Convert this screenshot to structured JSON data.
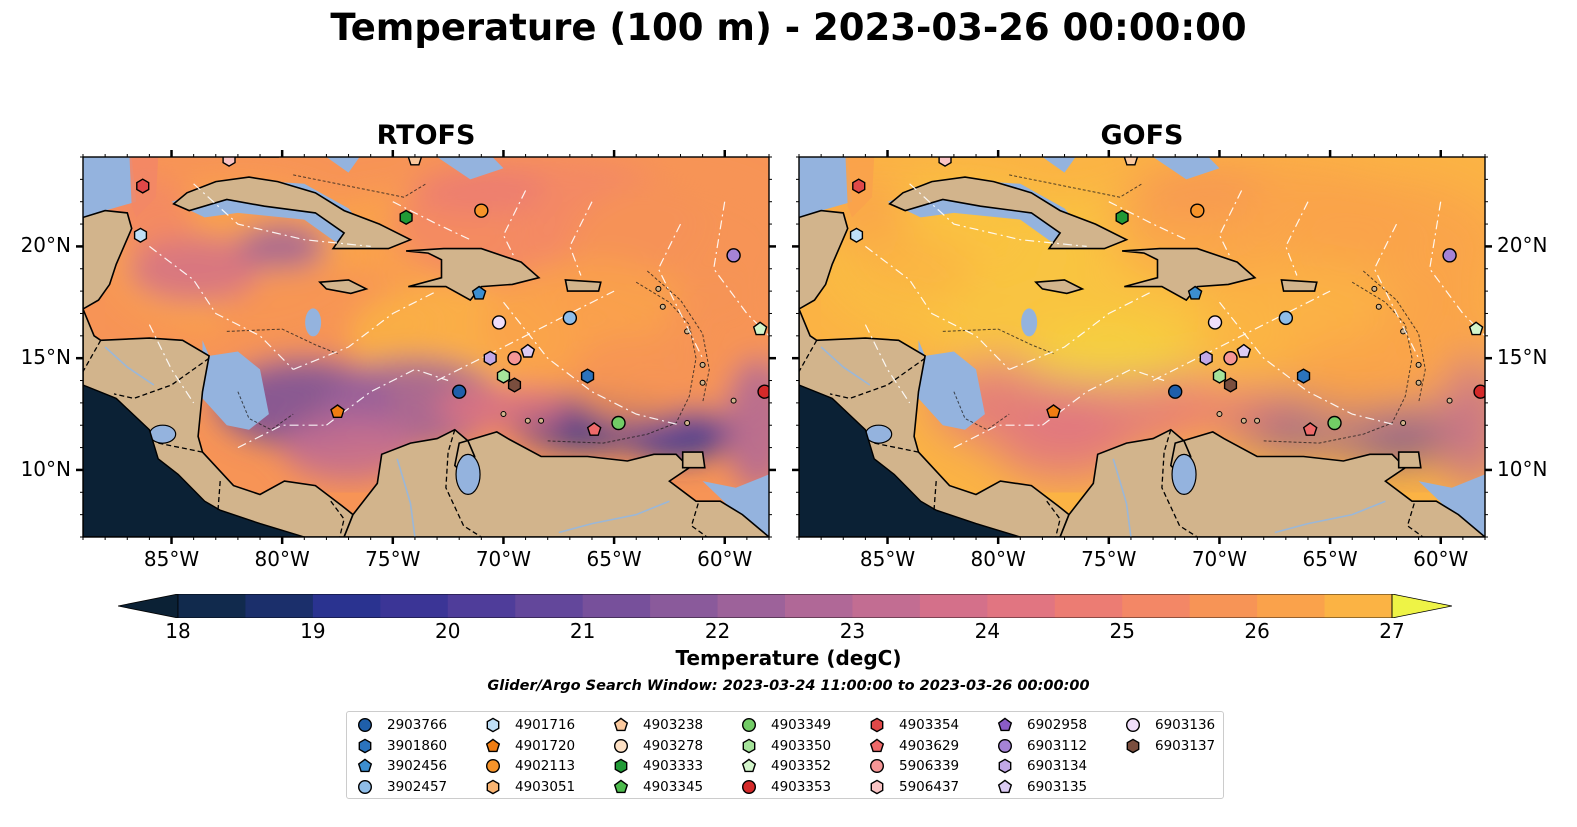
{
  "title": "Temperature (100 m) - 2023-03-26 00:00:00",
  "panels": [
    {
      "title": "RTOFS"
    },
    {
      "title": "GOFS"
    }
  ],
  "axes": {
    "x_ticks": [
      "85°W",
      "80°W",
      "75°W",
      "70°W",
      "65°W",
      "60°W"
    ],
    "x_tick_values": [
      -85,
      -80,
      -75,
      -70,
      -65,
      -60
    ],
    "y_ticks": [
      "20°N",
      "15°N",
      "10°N"
    ],
    "y_tick_values": [
      20,
      15,
      10
    ],
    "lon_range": [
      -89,
      -58
    ],
    "lat_range": [
      7,
      24
    ]
  },
  "colorbar": {
    "label": "Temperature (degC)",
    "ticks": [
      "18",
      "19",
      "20",
      "21",
      "22",
      "23",
      "24",
      "25",
      "26",
      "27"
    ],
    "range": [
      18,
      27
    ],
    "step": 0.5,
    "extend": "both"
  },
  "colors": {
    "land": "#d2b48c",
    "shallow_water": "#94b3de",
    "colormap": [
      "#0b2135",
      "#112a4d",
      "#1b2f6b",
      "#2a3390",
      "#3b3596",
      "#4f3d9a",
      "#63479b",
      "#77509b",
      "#8a5a9b",
      "#9d629a",
      "#b06897",
      "#c26d92",
      "#d4708a",
      "#e17581",
      "#ec7c73",
      "#f38766",
      "#f79456",
      "#faa24b",
      "#fbb344",
      "#f9c540",
      "#f5d93c",
      "#eef346"
    ]
  },
  "search_window": "Glider/Argo Search Window: 2023-03-24 11:00:00 to 2023-03-26 00:00:00",
  "legend": [
    {
      "id": "2903766",
      "marker": "circle",
      "color": "#1f5faa"
    },
    {
      "id": "3901860",
      "marker": "hexagon",
      "color": "#2b73bd"
    },
    {
      "id": "3902456",
      "marker": "pentagon",
      "color": "#3c8ed0"
    },
    {
      "id": "3902457",
      "marker": "circle",
      "color": "#8fbde8"
    },
    {
      "id": "4901716",
      "marker": "hexagon",
      "color": "#bfdff7"
    },
    {
      "id": "4901720",
      "marker": "pentagon",
      "color": "#f07d12"
    },
    {
      "id": "4902113",
      "marker": "circle",
      "color": "#f7942a"
    },
    {
      "id": "4903051",
      "marker": "hexagon",
      "color": "#f9b472"
    },
    {
      "id": "4903238",
      "marker": "pentagon",
      "color": "#fbc99e"
    },
    {
      "id": "4903278",
      "marker": "circle",
      "color": "#fde0c4"
    },
    {
      "id": "4903333",
      "marker": "hexagon",
      "color": "#219a36"
    },
    {
      "id": "4903345",
      "marker": "pentagon",
      "color": "#4dbb4d"
    },
    {
      "id": "4903349",
      "marker": "circle",
      "color": "#72cc66"
    },
    {
      "id": "4903350",
      "marker": "hexagon",
      "color": "#a5e39a"
    },
    {
      "id": "4903352",
      "marker": "pentagon",
      "color": "#d3f5cb"
    },
    {
      "id": "4903353",
      "marker": "circle",
      "color": "#d42a2a"
    },
    {
      "id": "4903354",
      "marker": "hexagon",
      "color": "#e04848"
    },
    {
      "id": "4903629",
      "marker": "pentagon",
      "color": "#ee6a6a"
    },
    {
      "id": "5906339",
      "marker": "circle",
      "color": "#f59696"
    },
    {
      "id": "5906437",
      "marker": "hexagon",
      "color": "#fac4c4"
    },
    {
      "id": "6902958",
      "marker": "pentagon",
      "color": "#8a5cc7"
    },
    {
      "id": "6903112",
      "marker": "circle",
      "color": "#a583d6"
    },
    {
      "id": "6903134",
      "marker": "hexagon",
      "color": "#c2a8e6"
    },
    {
      "id": "6903135",
      "marker": "pentagon",
      "color": "#dccbf3"
    },
    {
      "id": "6903136",
      "marker": "circle",
      "color": "#f0defa"
    },
    {
      "id": "6903137",
      "marker": "hexagon",
      "color": "#7a4e3e"
    }
  ],
  "map_markers": [
    {
      "id": "5906437",
      "lon": -82.4,
      "lat": 23.9
    },
    {
      "id": "4903238",
      "lon": -74.0,
      "lat": 23.9
    },
    {
      "id": "4903354",
      "lon": -86.3,
      "lat": 22.7
    },
    {
      "id": "4901716",
      "lon": -86.4,
      "lat": 20.5
    },
    {
      "id": "4903333",
      "lon": -74.4,
      "lat": 21.3
    },
    {
      "id": "4902113",
      "lon": -71.0,
      "lat": 21.6
    },
    {
      "id": "6903112",
      "lon": -59.6,
      "lat": 19.6
    },
    {
      "id": "3902456",
      "lon": -71.1,
      "lat": 17.9
    },
    {
      "id": "6903136",
      "lon": -70.2,
      "lat": 16.6
    },
    {
      "id": "3902457",
      "lon": -67.0,
      "lat": 16.8
    },
    {
      "id": "4903352",
      "lon": -58.4,
      "lat": 16.3
    },
    {
      "id": "6903134",
      "lon": -70.6,
      "lat": 15.0
    },
    {
      "id": "5906339",
      "lon": -69.5,
      "lat": 15.0
    },
    {
      "id": "6903135",
      "lon": -68.9,
      "lat": 15.3
    },
    {
      "id": "4903350",
      "lon": -70.0,
      "lat": 14.2
    },
    {
      "id": "6903137",
      "lon": -69.5,
      "lat": 13.8
    },
    {
      "id": "3901860",
      "lon": -66.2,
      "lat": 14.2
    },
    {
      "id": "2903766",
      "lon": -72.0,
      "lat": 13.5
    },
    {
      "id": "4903353",
      "lon": -58.2,
      "lat": 13.5
    },
    {
      "id": "4901720",
      "lon": -77.5,
      "lat": 12.6
    },
    {
      "id": "4903629",
      "lon": -65.9,
      "lat": 11.8
    },
    {
      "id": "4903349",
      "lon": -64.8,
      "lat": 12.1
    }
  ]
}
